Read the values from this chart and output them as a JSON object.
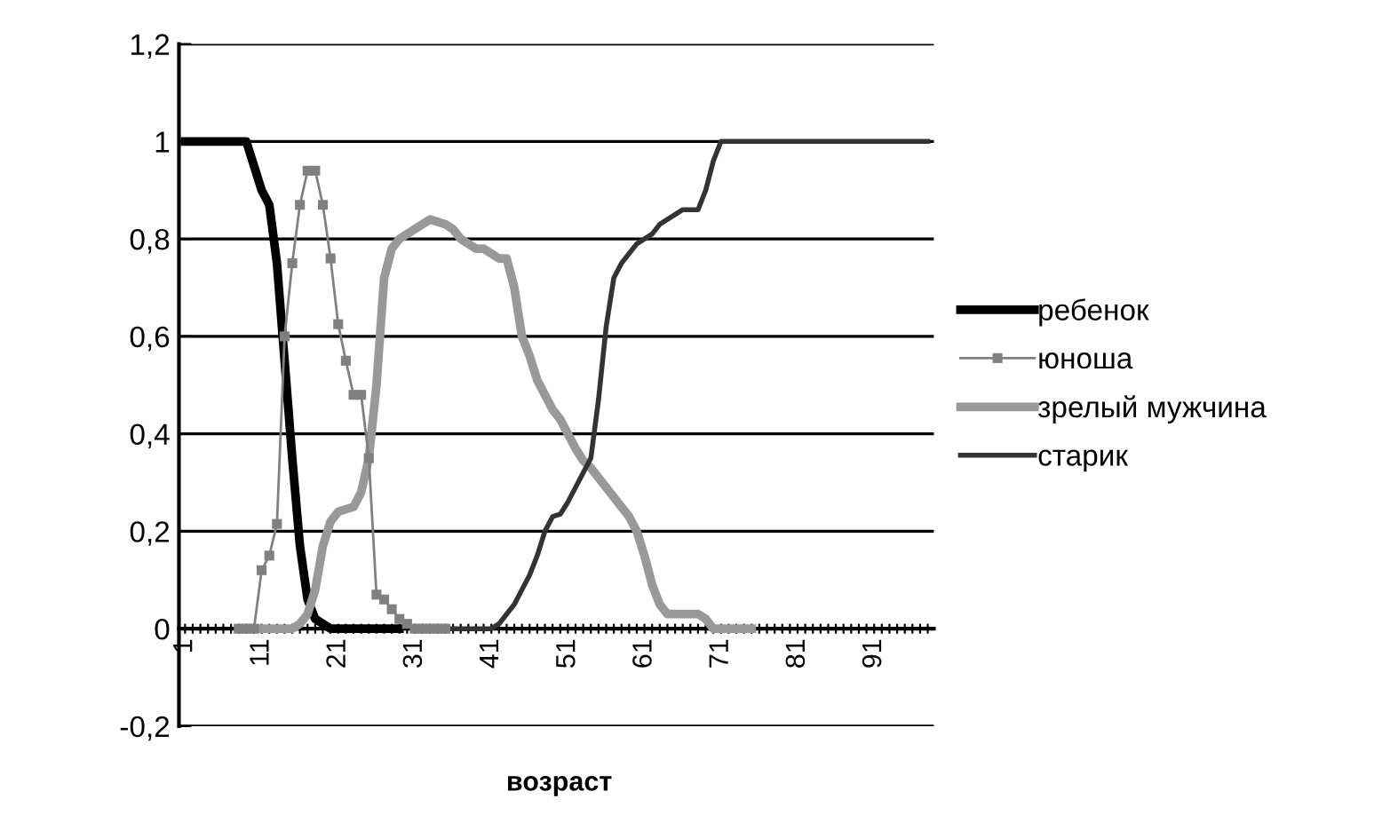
{
  "chart_data": {
    "type": "line",
    "xlabel": "возраст",
    "categories": [
      "1",
      null,
      null,
      null,
      null,
      null,
      null,
      null,
      null,
      null,
      "11",
      null,
      null,
      null,
      null,
      null,
      null,
      null,
      null,
      null,
      "21",
      null,
      null,
      null,
      null,
      null,
      null,
      null,
      null,
      null,
      "31",
      null,
      null,
      null,
      null,
      null,
      null,
      null,
      null,
      null,
      "41",
      null,
      null,
      null,
      null,
      null,
      null,
      null,
      null,
      null,
      "51",
      null,
      null,
      null,
      null,
      null,
      null,
      null,
      null,
      null,
      "61",
      null,
      null,
      null,
      null,
      null,
      null,
      null,
      null,
      null,
      "71",
      null,
      null,
      null,
      null,
      null,
      null,
      null,
      null,
      null,
      "81",
      null,
      null,
      null,
      null,
      null,
      null,
      null,
      null,
      null,
      "91",
      null,
      null,
      null,
      null,
      null,
      null,
      null
    ],
    "ylim": [
      -0.2,
      1.2
    ],
    "yticks": [
      {
        "value": -0.2,
        "label": "-0,2"
      },
      0,
      {
        "value": 0.2,
        "label": "0,2"
      },
      {
        "value": 0.4,
        "label": "0,4"
      },
      {
        "value": 0.6,
        "label": "0,6"
      },
      {
        "value": 0.8,
        "label": "0,8"
      },
      1,
      {
        "value": 1.2,
        "label": "1,2"
      }
    ],
    "grid": "y",
    "legend": "right",
    "line_style": "solid",
    "series": [
      {
        "name": "ребенок",
        "color": "#000000",
        "marker": "none",
        "values": [
          1,
          1,
          1,
          1,
          1,
          1,
          1,
          1,
          1,
          0.95,
          0.9,
          0.87,
          0.75,
          0.55,
          0.35,
          0.17,
          0.06,
          0.02,
          0.01,
          0,
          0,
          0,
          0,
          0,
          0,
          0,
          0,
          0,
          0,
          null,
          null,
          null,
          null,
          null,
          null,
          null,
          null,
          null,
          null,
          null,
          null,
          null,
          null,
          null,
          null,
          null,
          null,
          null,
          null,
          null,
          null,
          null,
          null,
          null,
          null,
          null,
          null,
          null,
          null,
          null,
          null,
          null,
          null,
          null,
          null,
          null,
          null,
          null,
          null,
          null,
          null,
          null,
          null,
          null,
          null,
          null,
          null,
          null,
          null,
          null,
          null,
          null,
          null,
          null,
          null,
          null,
          null,
          null,
          null,
          null,
          null,
          null,
          null,
          null,
          null,
          null,
          null,
          null
        ]
      },
      {
        "name": "юноша",
        "color": "#808080",
        "marker": "square",
        "values": [
          null,
          null,
          null,
          null,
          null,
          null,
          null,
          0,
          0,
          0,
          0.12,
          0.15,
          0.215,
          0.6,
          0.75,
          0.87,
          0.94,
          0.94,
          0.87,
          0.76,
          0.625,
          0.55,
          0.48,
          0.48,
          0.35,
          0.07,
          0.06,
          0.04,
          0.02,
          0.01,
          0,
          0,
          0,
          0,
          0,
          null,
          null,
          null,
          null,
          null,
          null,
          null,
          null,
          null,
          null,
          null,
          null,
          null,
          null,
          null,
          null,
          null,
          null,
          null,
          null,
          null,
          null,
          null,
          null,
          null,
          null,
          null,
          null,
          null,
          null,
          null,
          null,
          null,
          null,
          null,
          null,
          null,
          null,
          null,
          null,
          null,
          null,
          null,
          null,
          null,
          null,
          null,
          null,
          null,
          null,
          null,
          null,
          null,
          null,
          null,
          null,
          null,
          null,
          null,
          null,
          null,
          null,
          null
        ]
      },
      {
        "name": "зрелый мужчина",
        "color": "#999999",
        "marker": "none",
        "values": [
          null,
          null,
          null,
          null,
          null,
          null,
          null,
          null,
          0,
          0,
          0,
          0,
          0,
          0,
          0,
          0.01,
          0.03,
          0.08,
          0.17,
          0.22,
          0.24,
          0.245,
          0.25,
          0.28,
          0.35,
          0.5,
          0.72,
          0.78,
          0.8,
          0.81,
          0.82,
          0.83,
          0.84,
          0.835,
          0.83,
          0.82,
          0.8,
          0.79,
          0.78,
          0.78,
          0.77,
          0.76,
          0.76,
          0.7,
          0.6,
          0.56,
          0.51,
          0.48,
          0.45,
          0.43,
          0.4,
          0.37,
          0.345,
          0.33,
          0.31,
          0.29,
          0.27,
          0.25,
          0.23,
          0.2,
          0.15,
          0.09,
          0.05,
          0.03,
          0.03,
          0.03,
          0.03,
          0.03,
          0.02,
          0,
          0,
          0,
          0,
          0,
          0,
          null,
          null,
          null,
          null,
          null,
          null,
          null,
          null,
          null,
          null,
          null,
          null,
          null,
          null,
          null,
          null,
          null,
          null,
          null,
          null,
          null,
          null,
          null
        ]
      },
      {
        "name": "старик",
        "color": "#333333",
        "marker": "none",
        "values": [
          null,
          null,
          null,
          null,
          null,
          null,
          null,
          null,
          null,
          null,
          null,
          null,
          null,
          null,
          null,
          null,
          null,
          null,
          null,
          null,
          null,
          null,
          null,
          null,
          null,
          null,
          null,
          null,
          null,
          null,
          null,
          null,
          null,
          0,
          0,
          0,
          0,
          0,
          0,
          0,
          0,
          0.01,
          0.03,
          0.05,
          0.08,
          0.11,
          0.15,
          0.2,
          0.23,
          0.235,
          0.26,
          0.29,
          0.32,
          0.35,
          0.47,
          0.62,
          0.72,
          0.75,
          0.77,
          0.79,
          0.8,
          0.81,
          0.83,
          0.84,
          0.85,
          0.86,
          0.86,
          0.86,
          0.9,
          0.96,
          1,
          1,
          1,
          1,
          1,
          1,
          1,
          1,
          1,
          1,
          1,
          1,
          1,
          1,
          1,
          1,
          1,
          1,
          1,
          1,
          1,
          1,
          1,
          1,
          1,
          1,
          1,
          1
        ]
      }
    ]
  }
}
